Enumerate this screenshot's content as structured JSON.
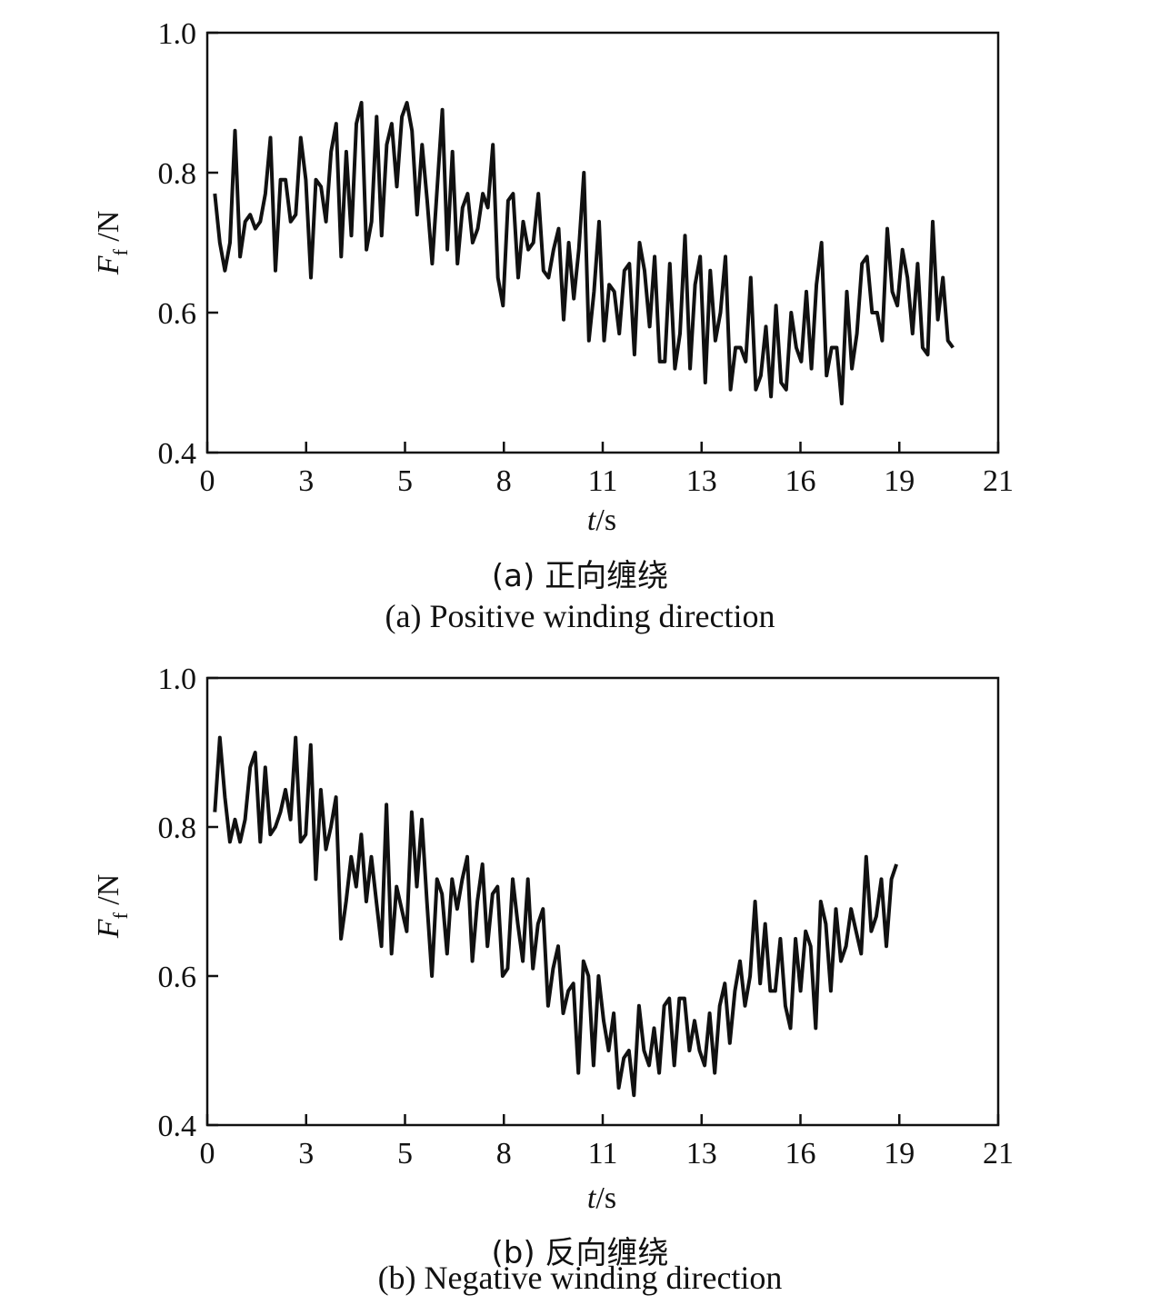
{
  "chart_data": [
    {
      "type": "line",
      "title": "",
      "caption_cn": "(a) 正向缠绕",
      "caption_en": "(a) Positive winding direction",
      "xlabel": "t/s",
      "xlabel_var": "t",
      "xlabel_unit": "/s",
      "ylabel": "Ff /N",
      "ylabel_var": "F",
      "ylabel_sub": "f",
      "ylabel_unit": " /N",
      "xlim": [
        0,
        21
      ],
      "ylim": [
        0.4,
        1.0
      ],
      "xticks": [
        "0",
        "3",
        "5",
        "8",
        "11",
        "13",
        "16",
        "19",
        "21"
      ],
      "yticks": [
        "0.4",
        "0.6",
        "0.8",
        "1.0"
      ],
      "grid": false,
      "legend": "none",
      "line_color": "#111111",
      "series": [
        {
          "values": [
            0.77,
            0.7,
            0.66,
            0.7,
            0.86,
            0.68,
            0.73,
            0.74,
            0.72,
            0.73,
            0.77,
            0.85,
            0.66,
            0.79,
            0.79,
            0.73,
            0.74,
            0.85,
            0.79,
            0.65,
            0.79,
            0.78,
            0.73,
            0.83,
            0.87,
            0.68,
            0.83,
            0.71,
            0.87,
            0.9,
            0.69,
            0.73,
            0.88,
            0.71,
            0.84,
            0.87,
            0.78,
            0.88,
            0.9,
            0.86,
            0.74,
            0.84,
            0.76,
            0.67,
            0.78,
            0.89,
            0.69,
            0.83,
            0.67,
            0.75,
            0.77,
            0.7,
            0.72,
            0.77,
            0.75,
            0.84,
            0.65,
            0.61,
            0.76,
            0.77,
            0.65,
            0.73,
            0.69,
            0.7,
            0.77,
            0.66,
            0.65,
            0.69,
            0.72,
            0.59,
            0.7,
            0.62,
            0.69,
            0.8,
            0.56,
            0.63,
            0.73,
            0.56,
            0.64,
            0.63,
            0.57,
            0.66,
            0.67,
            0.54,
            0.7,
            0.66,
            0.58,
            0.68,
            0.53,
            0.53,
            0.67,
            0.52,
            0.57,
            0.71,
            0.52,
            0.64,
            0.68,
            0.5,
            0.66,
            0.56,
            0.6,
            0.68,
            0.49,
            0.55,
            0.55,
            0.53,
            0.65,
            0.49,
            0.51,
            0.58,
            0.48,
            0.61,
            0.5,
            0.49,
            0.6,
            0.55,
            0.53,
            0.63,
            0.52,
            0.64,
            0.7,
            0.51,
            0.55,
            0.55,
            0.47,
            0.63,
            0.52,
            0.57,
            0.67,
            0.68,
            0.6,
            0.6,
            0.56,
            0.72,
            0.63,
            0.61,
            0.69,
            0.65,
            0.57,
            0.67,
            0.55,
            0.54,
            0.73,
            0.59,
            0.65,
            0.56,
            0.55
          ]
        }
      ]
    },
    {
      "type": "line",
      "title": "",
      "caption_cn": "(b) 反向缠绕",
      "caption_en": "(b) Negative winding direction",
      "xlabel": "t/s",
      "xlabel_var": "t",
      "xlabel_unit": "/s",
      "ylabel": "Ff /N",
      "ylabel_var": "F",
      "ylabel_sub": "f",
      "ylabel_unit": " /N",
      "xlim": [
        0,
        21
      ],
      "ylim": [
        0.4,
        1.0
      ],
      "xticks": [
        "0",
        "3",
        "5",
        "8",
        "11",
        "13",
        "16",
        "19",
        "21"
      ],
      "yticks": [
        "0.4",
        "0.6",
        "0.8",
        "1.0"
      ],
      "grid": false,
      "legend": "none",
      "line_color": "#111111",
      "series": [
        {
          "values": [
            0.82,
            0.92,
            0.84,
            0.78,
            0.81,
            0.78,
            0.81,
            0.88,
            0.9,
            0.78,
            0.88,
            0.79,
            0.8,
            0.82,
            0.85,
            0.81,
            0.92,
            0.78,
            0.79,
            0.91,
            0.73,
            0.85,
            0.77,
            0.8,
            0.84,
            0.65,
            0.7,
            0.76,
            0.72,
            0.79,
            0.7,
            0.76,
            0.7,
            0.64,
            0.83,
            0.63,
            0.72,
            0.69,
            0.66,
            0.82,
            0.72,
            0.81,
            0.7,
            0.6,
            0.73,
            0.71,
            0.63,
            0.73,
            0.69,
            0.73,
            0.76,
            0.62,
            0.7,
            0.75,
            0.64,
            0.71,
            0.72,
            0.6,
            0.61,
            0.73,
            0.67,
            0.62,
            0.73,
            0.61,
            0.67,
            0.69,
            0.56,
            0.61,
            0.64,
            0.55,
            0.58,
            0.59,
            0.47,
            0.62,
            0.6,
            0.48,
            0.6,
            0.54,
            0.5,
            0.55,
            0.45,
            0.49,
            0.5,
            0.44,
            0.56,
            0.5,
            0.48,
            0.53,
            0.47,
            0.56,
            0.57,
            0.48,
            0.57,
            0.57,
            0.5,
            0.54,
            0.5,
            0.48,
            0.55,
            0.47,
            0.56,
            0.59,
            0.51,
            0.58,
            0.62,
            0.56,
            0.6,
            0.7,
            0.59,
            0.67,
            0.58,
            0.58,
            0.65,
            0.56,
            0.53,
            0.65,
            0.58,
            0.66,
            0.64,
            0.53,
            0.7,
            0.67,
            0.58,
            0.69,
            0.62,
            0.64,
            0.69,
            0.66,
            0.63,
            0.76,
            0.66,
            0.68,
            0.73,
            0.64,
            0.73,
            0.75
          ]
        }
      ]
    }
  ]
}
